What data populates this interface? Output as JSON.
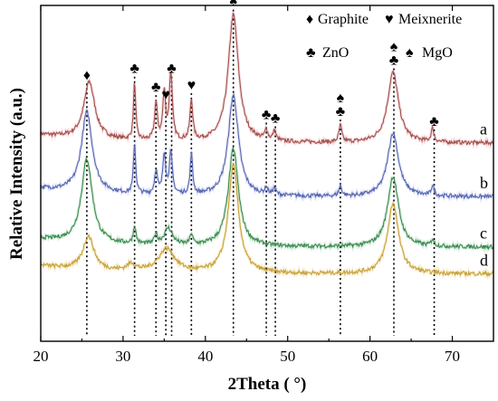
{
  "chart_data": {
    "type": "line",
    "xlabel": "2Theta ( °)",
    "ylabel": "Relative Intensity (a.u.)",
    "xlim": [
      20,
      75
    ],
    "xticks": [
      20,
      30,
      40,
      50,
      60,
      70
    ],
    "xtick_labels": [
      "20",
      "30",
      "40",
      "50",
      "60",
      "70"
    ],
    "legend": [
      {
        "symbol": "♦",
        "label": "Graphite"
      },
      {
        "symbol": "♥",
        "label": "Meixnerite"
      },
      {
        "symbol": "♣",
        "label": "ZnO"
      },
      {
        "symbol": "♠",
        "label": "MgO"
      }
    ],
    "series": [
      {
        "label": "a",
        "color": "#a0524a",
        "baseline": 0.59,
        "glow": "#f2a0b0",
        "peaks": [
          [
            25.9,
            0.17,
            0.8
          ],
          [
            31.4,
            0.17,
            0.16
          ],
          [
            34.0,
            0.11,
            0.2
          ],
          [
            35.0,
            0.14,
            0.2
          ],
          [
            35.8,
            0.2,
            0.22
          ],
          [
            38.3,
            0.12,
            0.2
          ],
          [
            43.4,
            0.38,
            0.75
          ],
          [
            47.4,
            0.03,
            0.2
          ],
          [
            48.4,
            0.03,
            0.2
          ],
          [
            56.4,
            0.05,
            0.2
          ],
          [
            62.8,
            0.21,
            0.8
          ],
          [
            67.6,
            0.04,
            0.2
          ]
        ]
      },
      {
        "label": "b",
        "color": "#5569b0",
        "baseline": 0.43,
        "glow": "#b8b8f0",
        "peaks": [
          [
            25.6,
            0.24,
            0.8
          ],
          [
            31.4,
            0.15,
            0.16
          ],
          [
            34.0,
            0.07,
            0.2
          ],
          [
            35.0,
            0.12,
            0.2
          ],
          [
            35.8,
            0.12,
            0.22
          ],
          [
            38.3,
            0.12,
            0.18
          ],
          [
            43.4,
            0.3,
            0.75
          ],
          [
            47.4,
            0.02,
            0.2
          ],
          [
            48.4,
            0.02,
            0.2
          ],
          [
            56.4,
            0.03,
            0.2
          ],
          [
            62.8,
            0.19,
            0.8
          ],
          [
            67.6,
            0.03,
            0.2
          ]
        ]
      },
      {
        "label": "c",
        "color": "#3d8a52",
        "baseline": 0.28,
        "glow": "#9ad4a6",
        "peaks": [
          [
            25.6,
            0.25,
            0.8
          ],
          [
            31.4,
            0.05,
            0.2
          ],
          [
            34.0,
            0.03,
            0.2
          ],
          [
            35.5,
            0.05,
            0.6
          ],
          [
            38.3,
            0.03,
            0.2
          ],
          [
            43.4,
            0.29,
            0.75
          ],
          [
            62.8,
            0.21,
            0.8
          ],
          [
            67.6,
            0.02,
            0.2
          ]
        ]
      },
      {
        "label": "d",
        "color": "#c8a23a",
        "baseline": 0.2,
        "glow": "#ecd28a",
        "peaks": [
          [
            25.8,
            0.1,
            0.8
          ],
          [
            31.0,
            0.02,
            0.6
          ],
          [
            35.3,
            0.07,
            1.2
          ],
          [
            43.4,
            0.32,
            0.75
          ],
          [
            62.8,
            0.21,
            0.8
          ]
        ]
      }
    ],
    "reference_lines": [
      {
        "x": 25.6,
        "marker": "♦"
      },
      {
        "x": 31.4,
        "marker": "♣"
      },
      {
        "x": 34.0,
        "marker": "♣"
      },
      {
        "x": 35.2,
        "marker": "♥"
      },
      {
        "x": 35.9,
        "marker": "♣"
      },
      {
        "x": 38.3,
        "marker": "♥"
      },
      {
        "x": 43.4,
        "marker": "♦♠"
      },
      {
        "x": 47.4,
        "marker": "♣"
      },
      {
        "x": 48.5,
        "marker": "♣"
      },
      {
        "x": 56.4,
        "marker": "♠♣"
      },
      {
        "x": 62.9,
        "marker": "♠♣"
      },
      {
        "x": 67.8,
        "marker": "♣"
      }
    ]
  }
}
